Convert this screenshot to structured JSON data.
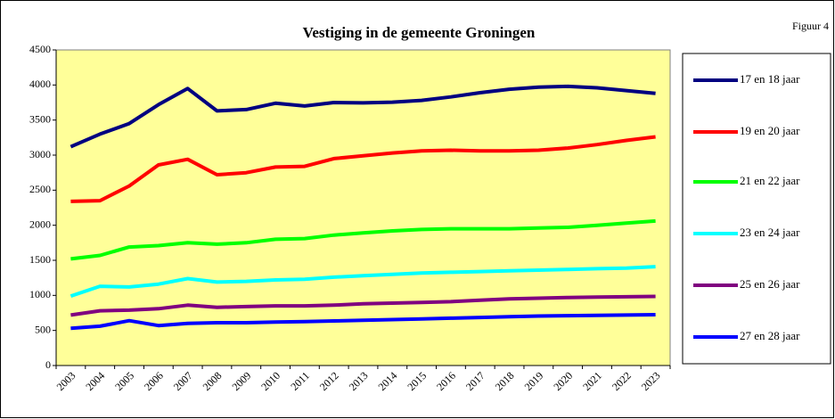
{
  "chart_data": {
    "type": "line",
    "title": "Vestiging in de gemeente Groningen",
    "annotation": "Figuur 4",
    "categories": [
      "2003",
      "2004",
      "2005",
      "2006",
      "2007",
      "2008",
      "2009",
      "2010",
      "2011",
      "2012",
      "2013",
      "2014",
      "2015",
      "2016",
      "2017",
      "2018",
      "2019",
      "2020",
      "2021",
      "2022",
      "2023"
    ],
    "series": [
      {
        "name": "17 en 18 jaar",
        "color": "#000080",
        "values": [
          3120,
          3300,
          3450,
          3720,
          3950,
          3630,
          3650,
          3740,
          3700,
          3750,
          3745,
          3755,
          3780,
          3830,
          3890,
          3940,
          3970,
          3980,
          3960,
          3920,
          3880
        ]
      },
      {
        "name": "19 en 20 jaar",
        "color": "#ff0000",
        "values": [
          2340,
          2350,
          2560,
          2860,
          2940,
          2720,
          2750,
          2830,
          2840,
          2950,
          2990,
          3030,
          3060,
          3070,
          3060,
          3060,
          3070,
          3100,
          3150,
          3210,
          3260
        ]
      },
      {
        "name": "21 en 22 jaar",
        "color": "#00ff00",
        "values": [
          1520,
          1570,
          1690,
          1710,
          1750,
          1730,
          1750,
          1800,
          1810,
          1860,
          1890,
          1920,
          1940,
          1950,
          1950,
          1950,
          1960,
          1970,
          2000,
          2030,
          2060
        ]
      },
      {
        "name": "23 en 24 jaar",
        "color": "#00ffff",
        "values": [
          990,
          1130,
          1120,
          1160,
          1240,
          1190,
          1200,
          1220,
          1230,
          1260,
          1280,
          1300,
          1320,
          1330,
          1340,
          1350,
          1360,
          1370,
          1380,
          1390,
          1410
        ]
      },
      {
        "name": "25 en 26 jaar",
        "color": "#800080",
        "values": [
          720,
          780,
          790,
          810,
          860,
          830,
          840,
          850,
          850,
          860,
          880,
          890,
          900,
          910,
          930,
          950,
          960,
          970,
          975,
          980,
          985
        ]
      },
      {
        "name": "27 en 28 jaar",
        "color": "#0000ff",
        "values": [
          530,
          560,
          640,
          570,
          600,
          610,
          610,
          620,
          625,
          635,
          645,
          655,
          665,
          675,
          685,
          695,
          705,
          710,
          715,
          720,
          725
        ]
      }
    ],
    "ylim": [
      0,
      4500
    ],
    "yticks": [
      0,
      500,
      1000,
      1500,
      2000,
      2500,
      3000,
      3500,
      4000,
      4500
    ],
    "grid": false,
    "legend": "right"
  }
}
